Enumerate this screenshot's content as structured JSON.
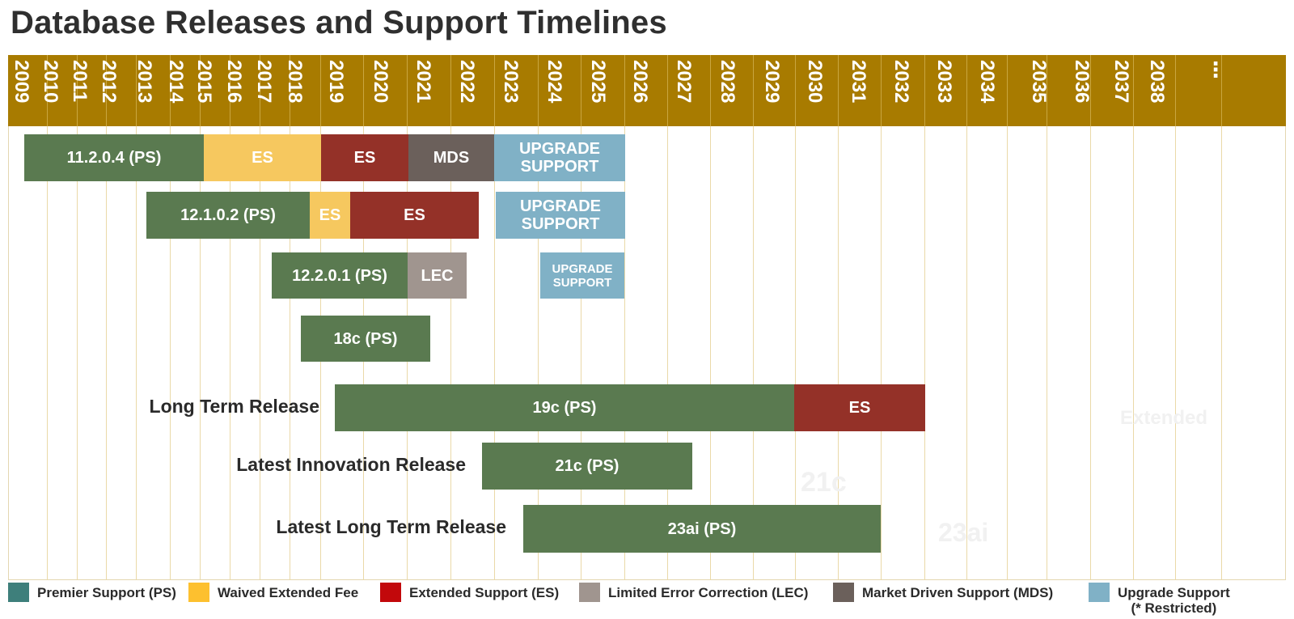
{
  "title": "Database Releases and Support Timelines",
  "colors": {
    "header": "#a87b00",
    "premier": "#5a7a50",
    "waived": "#f6c85f",
    "extended": "#943128",
    "lec": "#a0958f",
    "mds": "#6b605b",
    "upgrade": "#80b1c6",
    "legend_premier": "#3e7f7b",
    "legend_waived": "#fdc02f",
    "legend_extended": "#c2080b",
    "legend_lec": "#a0958f",
    "legend_mds": "#6b605b",
    "legend_upgrade": "#80b1c6"
  },
  "years": [
    "2009",
    "2010",
    "2011",
    "2012",
    "2013",
    "2014",
    "2015",
    "2016",
    "2017",
    "2018",
    "2019",
    "2020",
    "2021",
    "2022",
    "2023",
    "2024",
    "2025",
    "2026",
    "2027",
    "2028",
    "2029",
    "2030",
    "2031",
    "2032",
    "2033",
    "2034",
    "2035",
    "2036",
    "2037",
    "2038",
    "⋮"
  ],
  "rows": [
    {
      "segments": [
        {
          "label": "11.2.0.4 (PS)",
          "type": "premier"
        },
        {
          "label": "ES",
          "type": "waived"
        },
        {
          "label": "ES",
          "type": "extended"
        },
        {
          "label": "MDS",
          "type": "mds"
        },
        {
          "label": "UPGRADE\nSUPPORT",
          "type": "upgrade"
        }
      ]
    },
    {
      "segments": [
        {
          "label": "12.1.0.2 (PS)",
          "type": "premier"
        },
        {
          "label": "ES",
          "type": "waived"
        },
        {
          "label": "ES",
          "type": "extended"
        },
        {
          "label": "UPGRADE\nSUPPORT",
          "type": "upgrade"
        }
      ]
    },
    {
      "segments": [
        {
          "label": "12.2.0.1 (PS)",
          "type": "premier"
        },
        {
          "label": "LEC",
          "type": "lec"
        },
        {
          "label": "UPGRADE\nSUPPORT",
          "type": "upgrade"
        }
      ]
    },
    {
      "segments": [
        {
          "label": "18c (PS)",
          "type": "premier"
        }
      ]
    },
    {
      "label": "Long Term Release",
      "segments": [
        {
          "label": "19c (PS)",
          "type": "premier"
        },
        {
          "label": "ES",
          "type": "extended"
        }
      ]
    },
    {
      "label": "Latest Innovation Release",
      "segments": [
        {
          "label": "21c (PS)",
          "type": "premier"
        }
      ]
    },
    {
      "label": "Latest Long Term Release",
      "segments": [
        {
          "label": "23ai (PS)",
          "type": "premier"
        }
      ]
    }
  ],
  "ghost_text": [
    "Extended",
    "21c",
    "23ai"
  ],
  "legend": [
    {
      "label": "Premier Support (PS)",
      "type": "legend_premier"
    },
    {
      "label": "Waived Extended Fee",
      "type": "legend_waived"
    },
    {
      "label": "Extended Support (ES)",
      "type": "legend_extended"
    },
    {
      "label": "Limited Error Correction (LEC)",
      "type": "legend_lec"
    },
    {
      "label": "Market Driven Support (MDS)",
      "type": "legend_mds"
    },
    {
      "label": "Upgrade Support",
      "sublabel": "(* Restricted)",
      "type": "legend_upgrade"
    }
  ]
}
